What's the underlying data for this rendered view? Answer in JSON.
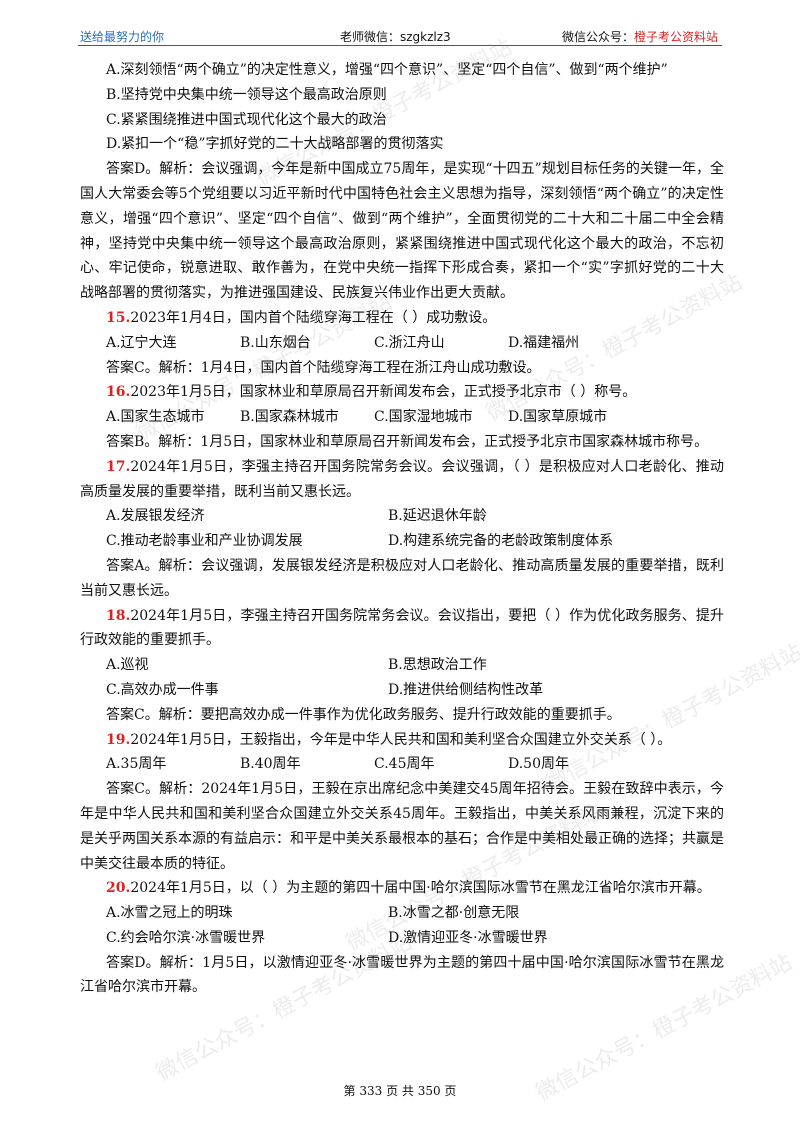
{
  "header": {
    "left": "送给最努力的你",
    "middle": "老师微信：szgkzlz3",
    "right_prefix": "微信公众号：",
    "right_accent": "橙子考公资料站"
  },
  "watermark": "微信公众号：橙子考公资料站",
  "block14": {
    "optA": "A.深刻领悟“两个确立”的决定性意义，增强“四个意识”、坚定“四个自信”、做到“两个维护”",
    "optB": "B.坚持党中央集中统一领导这个最高政治原则",
    "optC": "C.紧紧围绕推进中国式现代化这个最大的政治",
    "optD": "D.紧扣一个“稳”字抓好党的二十大战略部署的贯彻落实",
    "answer": "答案D。解析：会议强调，今年是新中国成立75周年，是实现“十四五”规划目标任务的关键一年，全国人大常委会等5个党组要以习近平新时代中国特色社会主义思想为指导，深刻领悟“两个确立”的决定性意义，增强“四个意识”、坚定“四个自信”、做到“两个维护”，全面贯彻党的二十大和二十届二中全会精神，坚持党中央集中统一领导这个最高政治原则，紧紧围绕推进中国式现代化这个最大的政治，不忘初心、牢记使命，锐意进取、敢作善为，在党中央统一指挥下形成合奏，紧扣一个“实”字抓好党的二十大战略部署的贯彻落实，为推进强国建设、民族复兴伟业作出更大贡献。"
  },
  "questions": [
    {
      "num": "15.",
      "stem": "2023年1月4日，国内首个陆缆穿海工程在（    ）成功敷设。",
      "options": [
        "A.辽宁大连",
        "B.山东烟台",
        "C.浙江舟山",
        "D.福建福州"
      ],
      "answer": "答案C。解析：1月4日，国内首个陆缆穿海工程在浙江舟山成功敷设。"
    },
    {
      "num": "16.",
      "stem": "2023年1月5日，国家林业和草原局召开新闻发布会，正式授予北京市（    ）称号。",
      "options": [
        "A.国家生态城市",
        "B.国家森林城市",
        "C.国家湿地城市",
        "D.国家草原城市"
      ],
      "answer": "答案B。解析：1月5日，国家林业和草原局召开新闻发布会，正式授予北京市国家森林城市称号。"
    },
    {
      "num": "17.",
      "stem": "2024年1月5日，李强主持召开国务院常务会议。会议强调，（    ）是积极应对人口老龄化、推动高质量发展的重要举措，既利当前又惠长远。",
      "options": [
        "A.发展银发经济",
        "B.延迟退休年龄",
        "C.推动老龄事业和产业协调发展",
        "D.构建系统完备的老龄政策制度体系"
      ],
      "answer": "答案A。解析：会议强调，发展银发经济是积极应对人口老龄化、推动高质量发展的重要举措，既利当前又惠长远。"
    },
    {
      "num": "18.",
      "stem": "2024年1月5日，李强主持召开国务院常务会议。会议指出，要把（    ）作为优化政务服务、提升行政效能的重要抓手。",
      "options": [
        "A.巡视",
        "B.思想政治工作",
        "C.高效办成一件事",
        "D.推进供给侧结构性改革"
      ],
      "answer": "答案C。解析：要把高效办成一件事作为优化政务服务、提升行政效能的重要抓手。"
    },
    {
      "num": "19.",
      "stem": "2024年1月5日，王毅指出，今年是中华人民共和国和美利坚合众国建立外交关系（    ）。",
      "options": [
        "A.35周年",
        "B.40周年",
        "C.45周年",
        "D.50周年"
      ],
      "answer": "答案C。解析：2024年1月5日，王毅在京出席纪念中美建交45周年招待会。王毅在致辞中表示，今年是中华人民共和国和美利坚合众国建立外交关系45周年。王毅指出，中美关系风雨兼程，沉淀下来的是关乎两国关系本源的有益启示：和平是中美关系最根本的基石；合作是中美相处最正确的选择；共赢是中美交往最本质的特征。"
    },
    {
      "num": "20.",
      "stem": "2024年1月5日，以（    ）为主题的第四十届中国·哈尔滨国际冰雪节在黑龙江省哈尔滨市开幕。",
      "options": [
        "A.冰雪之冠上的明珠",
        "B.冰雪之都·创意无限",
        "C.约会哈尔滨·冰雪暖世界",
        "D.激情迎亚冬·冰雪暖世界"
      ],
      "answer": "答案D。解析：1月5日，以激情迎亚冬·冰雪暖世界为主题的第四十届中国·哈尔滨国际冰雪节在黑龙江省哈尔滨市开幕。"
    }
  ],
  "footer": "第 333 页 共 350 页"
}
